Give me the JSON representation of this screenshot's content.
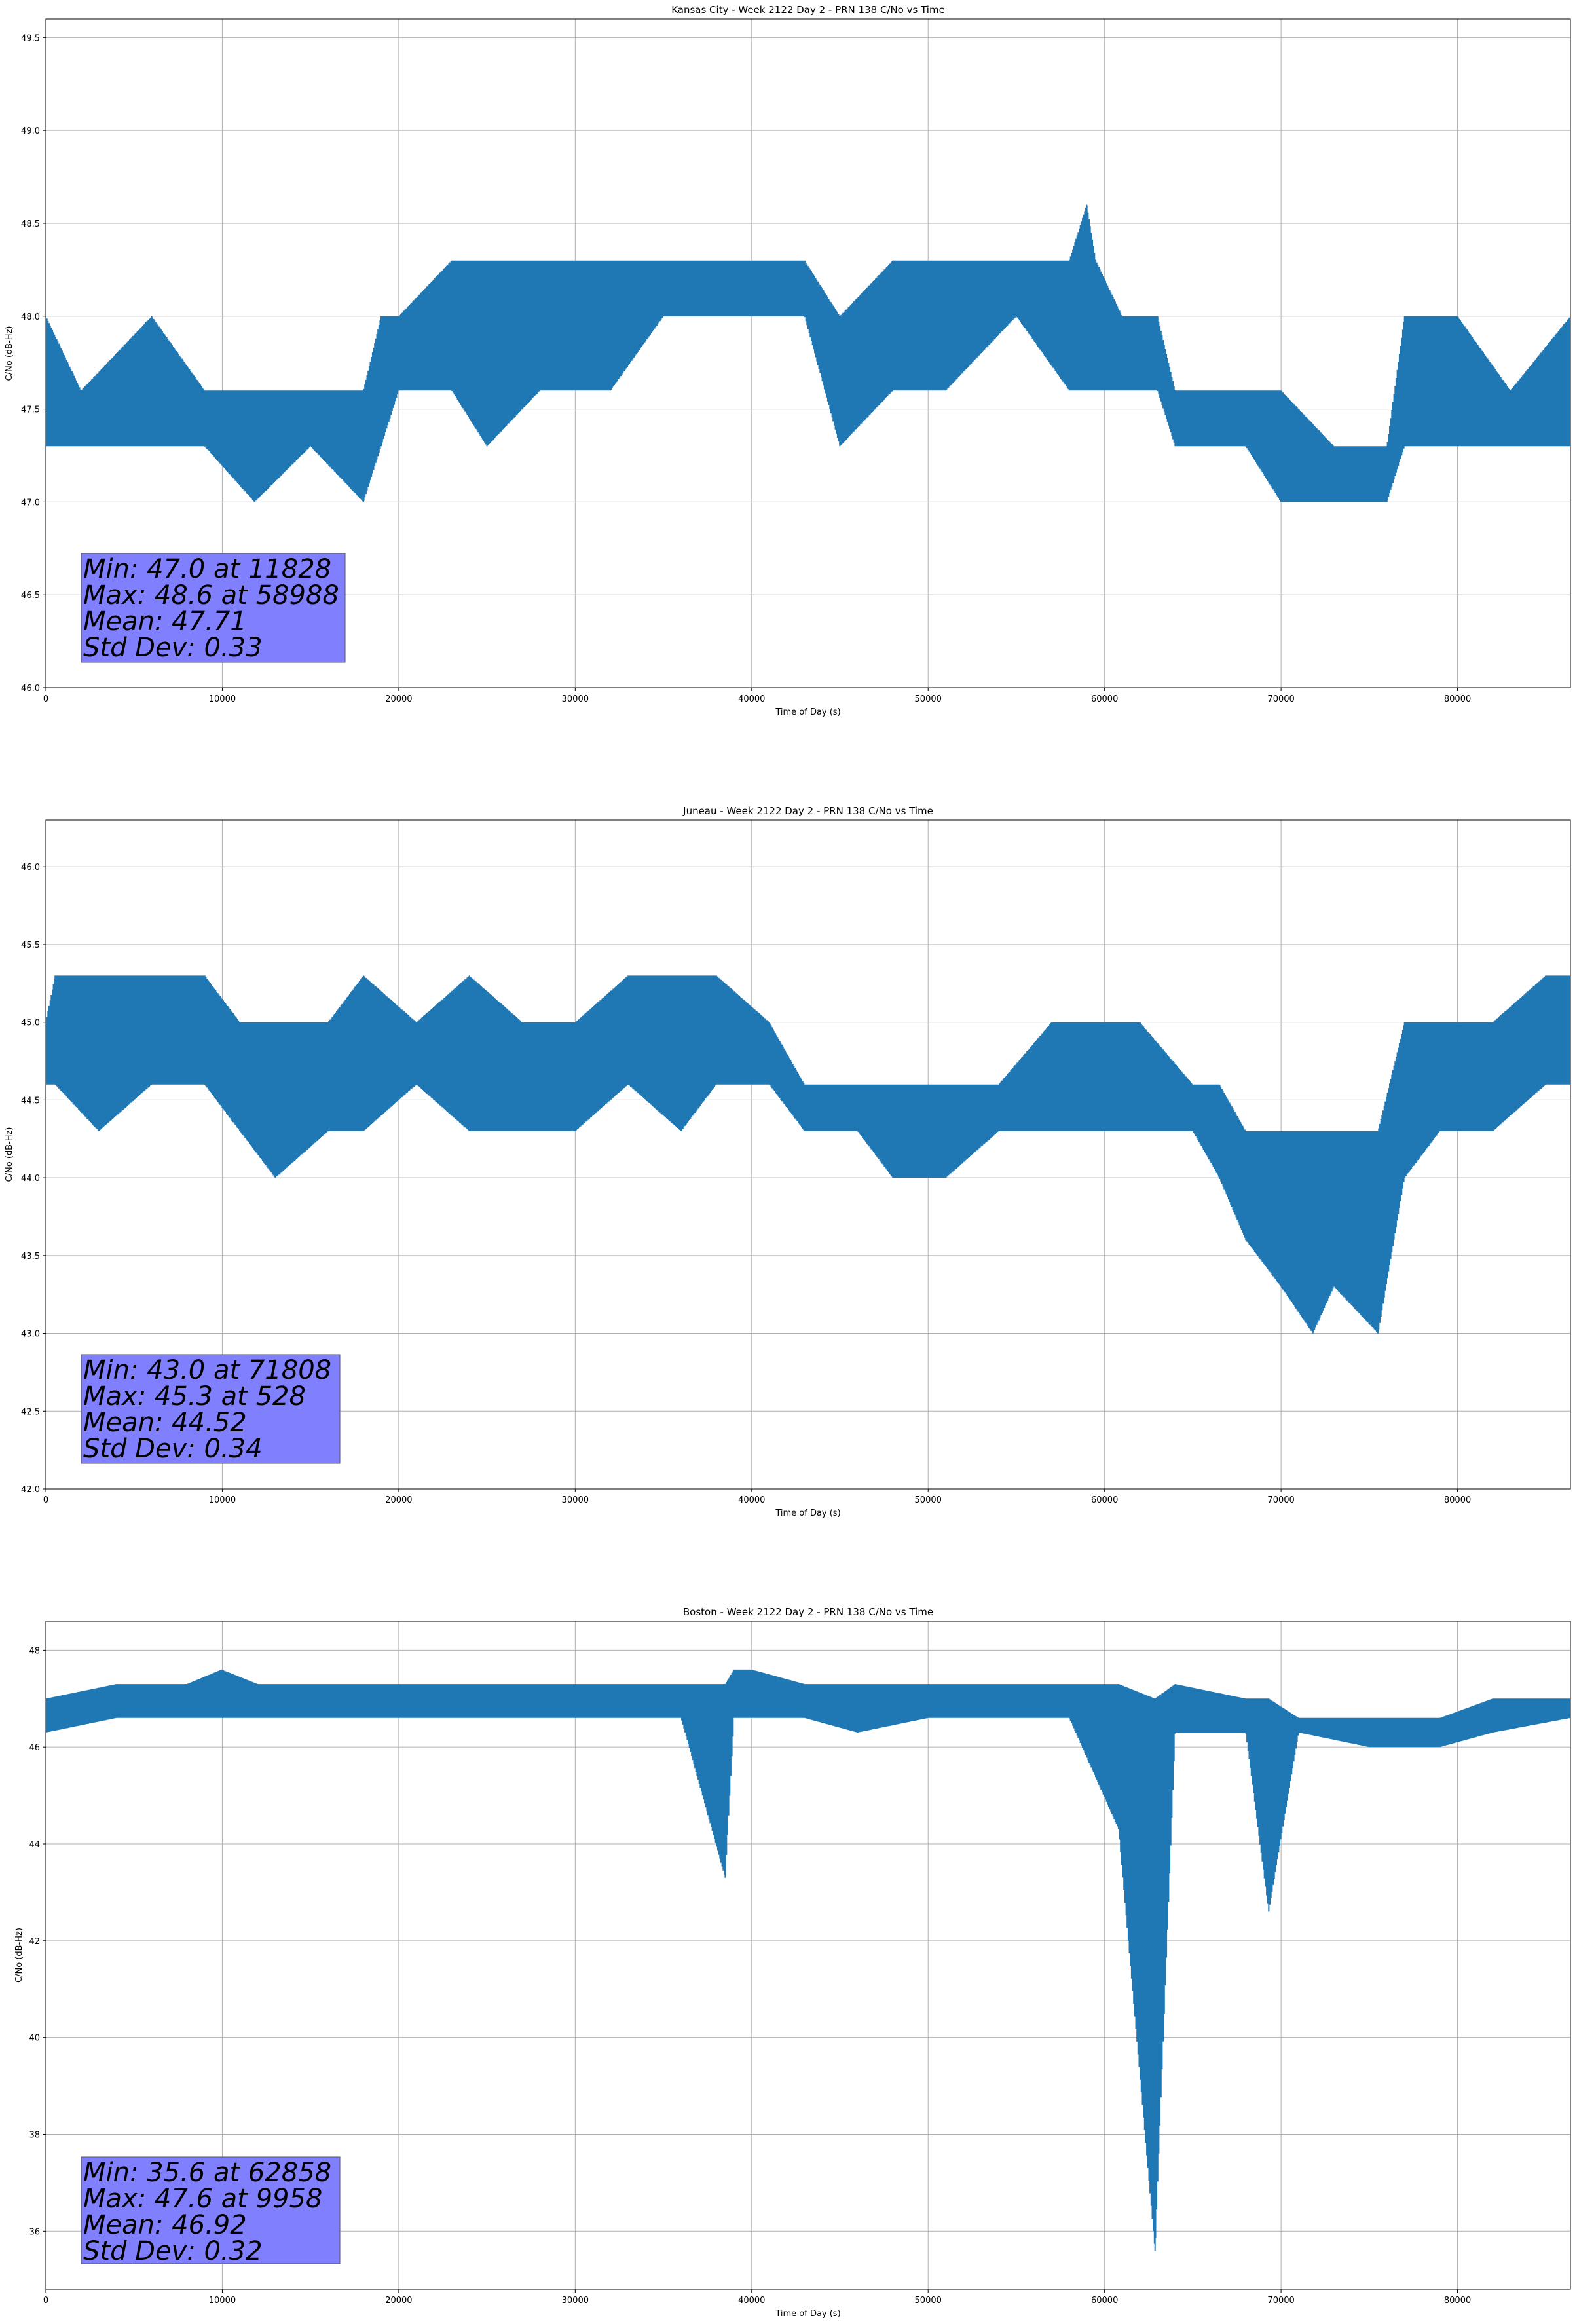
{
  "chart_data": [
    {
      "type": "line",
      "title": "Kansas City - Week 2122 Day 2 - PRN 138 C/No vs Time",
      "xlabel": "Time of Day (s)",
      "ylabel": "C/No (dB-Hz)",
      "xlim": [
        0,
        86400
      ],
      "ylim": [
        46.0,
        49.6
      ],
      "xticks": [
        0,
        10000,
        20000,
        30000,
        40000,
        50000,
        60000,
        70000,
        80000
      ],
      "yticks": [
        "46.0",
        "46.5",
        "47.0",
        "47.5",
        "48.0",
        "48.5",
        "49.0",
        "49.5"
      ],
      "grid": true,
      "series_color": "#1f77b4",
      "series": [
        {
          "x": [
            0,
            2000,
            6000,
            9000,
            11828,
            15000,
            18000,
            19000,
            20000,
            23000,
            25000,
            28000,
            32000,
            35000,
            40000,
            43000,
            45000,
            48000,
            51000,
            55000,
            58000,
            58988,
            59500,
            61000,
            63000,
            64000,
            66000,
            68000,
            70000,
            73000,
            76000,
            77000,
            80000,
            83000,
            86400
          ],
          "y_low": [
            47.3,
            47.3,
            47.3,
            47.3,
            47.0,
            47.3,
            47.0,
            47.3,
            47.6,
            47.6,
            47.3,
            47.6,
            47.6,
            48.0,
            48.0,
            48.0,
            47.3,
            47.6,
            47.6,
            48.0,
            47.6,
            47.6,
            47.6,
            47.6,
            47.6,
            47.3,
            47.3,
            47.3,
            47.0,
            47.0,
            47.0,
            47.3,
            47.3,
            47.3,
            47.3
          ],
          "y_high": [
            48.0,
            47.6,
            48.0,
            47.6,
            47.6,
            47.6,
            47.6,
            48.0,
            48.0,
            48.3,
            48.3,
            48.3,
            48.3,
            48.3,
            48.3,
            48.3,
            48.0,
            48.3,
            48.3,
            48.3,
            48.3,
            48.6,
            48.3,
            48.0,
            48.0,
            47.6,
            47.6,
            47.6,
            47.6,
            47.3,
            47.3,
            48.0,
            48.0,
            47.6,
            48.0
          ]
        }
      ],
      "stats": [
        "Min: 47.0 at 11828",
        "Max: 48.6 at 58988",
        "Mean: 47.71",
        "Std Dev: 0.33"
      ],
      "stats_box_color": "#8080ff"
    },
    {
      "type": "line",
      "title": "Juneau - Week 2122 Day 2 - PRN 138 C/No vs Time",
      "xlabel": "Time of Day (s)",
      "ylabel": "C/No (dB-Hz)",
      "xlim": [
        0,
        86400
      ],
      "ylim": [
        42.0,
        46.3
      ],
      "xticks": [
        0,
        10000,
        20000,
        30000,
        40000,
        50000,
        60000,
        70000,
        80000
      ],
      "yticks": [
        "42.0",
        "42.5",
        "43.0",
        "43.5",
        "44.0",
        "44.5",
        "45.0",
        "45.5",
        "46.0"
      ],
      "grid": true,
      "series_color": "#1f77b4",
      "series": [
        {
          "x": [
            0,
            528,
            3000,
            6000,
            9000,
            11000,
            13000,
            16000,
            18000,
            21000,
            24000,
            27000,
            30000,
            33000,
            36000,
            38000,
            41000,
            43000,
            46000,
            48000,
            51000,
            54000,
            57000,
            60000,
            62000,
            65000,
            66500,
            68000,
            70000,
            71808,
            73000,
            75500,
            77000,
            79000,
            82000,
            85000,
            86400
          ],
          "y_low": [
            44.6,
            44.6,
            44.3,
            44.6,
            44.6,
            44.3,
            44.0,
            44.3,
            44.3,
            44.6,
            44.3,
            44.3,
            44.3,
            44.6,
            44.3,
            44.6,
            44.6,
            44.3,
            44.3,
            44.0,
            44.0,
            44.3,
            44.3,
            44.3,
            44.3,
            44.3,
            44.0,
            43.6,
            43.3,
            43.0,
            43.3,
            43.0,
            44.0,
            44.3,
            44.3,
            44.6,
            44.6
          ],
          "y_high": [
            45.0,
            45.3,
            45.3,
            45.3,
            45.3,
            45.0,
            45.0,
            45.0,
            45.3,
            45.0,
            45.3,
            45.0,
            45.0,
            45.3,
            45.3,
            45.3,
            45.0,
            44.6,
            44.6,
            44.6,
            44.6,
            44.6,
            45.0,
            45.0,
            45.0,
            44.6,
            44.6,
            44.3,
            44.3,
            44.3,
            44.3,
            44.3,
            45.0,
            45.0,
            45.0,
            45.3,
            45.3
          ]
        }
      ],
      "stats": [
        "Min: 43.0 at 71808",
        "Max: 45.3 at 528",
        "Mean: 44.52",
        "Std Dev: 0.34"
      ],
      "stats_box_color": "#8080ff"
    },
    {
      "type": "line",
      "title": "Boston - Week 2122 Day 2 - PRN 138 C/No vs Time",
      "xlabel": "Time of Day (s)",
      "ylabel": "C/No (dB-Hz)",
      "xlim": [
        0,
        86400
      ],
      "ylim": [
        34.8,
        48.6
      ],
      "xticks": [
        0,
        10000,
        20000,
        30000,
        40000,
        50000,
        60000,
        70000,
        80000
      ],
      "yticks": [
        "36",
        "38",
        "40",
        "42",
        "44",
        "46",
        "48"
      ],
      "grid": true,
      "series_color": "#1f77b4",
      "series": [
        {
          "x": [
            0,
            4000,
            8000,
            9958,
            12000,
            16000,
            20000,
            24000,
            28000,
            32000,
            36000,
            38500,
            39000,
            40000,
            43000,
            46000,
            50000,
            54000,
            58000,
            60800,
            62858,
            64000,
            68000,
            69300,
            71000,
            75000,
            79000,
            82000,
            86400
          ],
          "y_low": [
            46.3,
            46.6,
            46.6,
            46.6,
            46.6,
            46.6,
            46.6,
            46.6,
            46.6,
            46.6,
            46.6,
            43.3,
            46.6,
            46.6,
            46.6,
            46.3,
            46.6,
            46.6,
            46.6,
            44.3,
            35.6,
            46.3,
            46.3,
            42.6,
            46.3,
            46.0,
            46.0,
            46.3,
            46.6
          ],
          "y_high": [
            47.0,
            47.3,
            47.3,
            47.6,
            47.3,
            47.3,
            47.3,
            47.3,
            47.3,
            47.3,
            47.3,
            47.3,
            47.6,
            47.6,
            47.3,
            47.3,
            47.3,
            47.3,
            47.3,
            47.3,
            47.0,
            47.3,
            47.0,
            47.0,
            46.6,
            46.6,
            46.6,
            47.0,
            47.0
          ]
        }
      ],
      "stats": [
        "Min: 35.6 at 62858",
        "Max: 47.6 at 9958",
        "Mean: 46.92",
        "Std Dev: 0.32"
      ],
      "stats_box_color": "#8080ff"
    }
  ]
}
